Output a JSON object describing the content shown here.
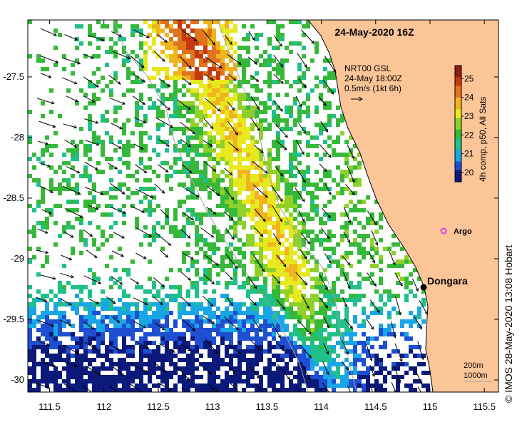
{
  "title": "24-May-2020 16Z",
  "wind": {
    "source": "NRT00 GSL",
    "time": "24-May 18:00Z",
    "scale": "0.5m/s (1kt 6h)"
  },
  "colorbar": {
    "label": "4h comp, p50, All Sats",
    "ticks": [
      25,
      24,
      23,
      22,
      21,
      20
    ],
    "range": [
      19.5,
      25.7
    ],
    "colors": [
      "#0b1a7a",
      "#1f4fd1",
      "#18a6e6",
      "#1fc08a",
      "#36b93a",
      "#8fd12a",
      "#e8e81e",
      "#f0b41e",
      "#e0741c",
      "#c33a10",
      "#8f1f10"
    ]
  },
  "axes": {
    "lon_ticks": [
      "111.5",
      "112",
      "112.5",
      "113",
      "113.5",
      "114",
      "114.5",
      "115",
      "115.5"
    ],
    "lat_ticks": [
      "-27.5",
      "-28",
      "-28.5",
      "-29",
      "-29.5",
      "-30"
    ],
    "lon_range": [
      111.3,
      115.63
    ],
    "lat_range": [
      -27.03,
      -30.1
    ]
  },
  "places": {
    "argo": "Argo",
    "town": "Dongara",
    "argo_color": "#e040e0",
    "land_color": "#fcc597"
  },
  "isobaths": {
    "shallow": "200m",
    "deep": "1000m"
  },
  "credit": "© IMOS 28-May-2020 13:08 Hobart"
}
